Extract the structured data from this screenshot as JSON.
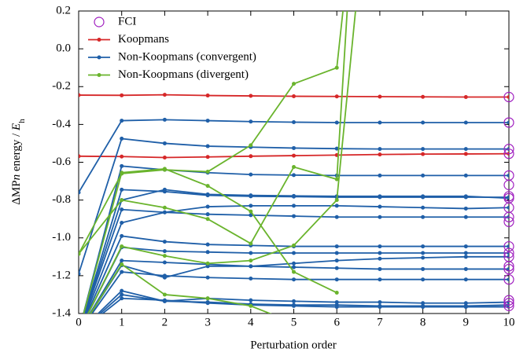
{
  "chart_data": {
    "type": "line",
    "x_label": "Perturbation order",
    "y_label": [
      "ΔMP",
      "n",
      " energy / ",
      "E",
      "h"
    ],
    "x": [
      0,
      1,
      2,
      3,
      4,
      5,
      6,
      7,
      8,
      9,
      10
    ],
    "xlim": [
      0,
      10
    ],
    "xticks": [
      0,
      1,
      2,
      3,
      4,
      5,
      6,
      7,
      8,
      9,
      10
    ],
    "ylim": [
      -1.4,
      0.2
    ],
    "yticks": [
      0.2,
      {
        "value": 0,
        "label": "0.0"
      },
      -0.2,
      -0.4,
      -0.6,
      -0.8,
      {
        "value": -1,
        "label": "-1.0"
      },
      -1.2,
      -1.4
    ],
    "legend": "top-left",
    "series": [
      {
        "name": "FCI",
        "color": "#a020c0",
        "marker": "open-circle",
        "x": [
          10,
          10,
          10,
          10,
          10,
          10,
          10,
          10,
          10,
          10,
          10,
          10,
          10,
          10,
          10,
          10,
          10,
          10,
          10,
          10
        ],
        "values": [
          -0.255,
          -0.39,
          -0.53,
          -0.555,
          -0.67,
          -0.72,
          -0.78,
          -0.79,
          -0.84,
          -0.89,
          -0.915,
          -1.045,
          -1.08,
          -1.1,
          -1.15,
          -1.165,
          -1.22,
          -1.33,
          -1.345,
          -1.36
        ]
      },
      {
        "name": "Koopmans",
        "color": "#d62728",
        "lines": [
          [
            -0.245,
            -0.246,
            -0.243,
            -0.247,
            -0.249,
            -0.251,
            -0.252,
            -0.253,
            -0.254,
            -0.255,
            -0.255
          ],
          [
            -0.568,
            -0.57,
            -0.575,
            -0.572,
            -0.568,
            -0.565,
            -0.562,
            -0.559,
            -0.557,
            -0.556,
            -0.555
          ]
        ]
      },
      {
        "name": "Non-Koopmans (convergent)",
        "color": "#1f5fa8",
        "lines": [
          [
            -0.76,
            -0.38,
            -0.375,
            -0.38,
            -0.385,
            -0.388,
            -0.39,
            -0.39,
            -0.39,
            -0.39,
            -0.39
          ],
          [
            -1.19,
            -0.475,
            -0.5,
            -0.515,
            -0.52,
            -0.525,
            -0.528,
            -0.53,
            -0.53,
            -0.53,
            -0.53
          ],
          [
            -1.5,
            -0.62,
            -0.64,
            -0.655,
            -0.665,
            -0.668,
            -0.67,
            -0.67,
            -0.67,
            -0.67,
            -0.67
          ],
          [
            -1.5,
            -0.745,
            -0.755,
            -0.775,
            -0.78,
            -0.782,
            -0.785,
            -0.785,
            -0.785,
            -0.785,
            -0.785
          ],
          [
            -1.5,
            -0.8,
            -0.745,
            -0.77,
            -0.775,
            -0.778,
            -0.78,
            -0.78,
            -0.78,
            -0.78,
            -0.79
          ],
          [
            -1.5,
            -0.92,
            -0.865,
            -0.835,
            -0.83,
            -0.83,
            -0.83,
            -0.835,
            -0.84,
            -0.845,
            -0.84
          ],
          [
            -1.5,
            -0.85,
            -0.865,
            -0.875,
            -0.88,
            -0.885,
            -0.89,
            -0.89,
            -0.89,
            -0.89,
            -0.89
          ],
          [
            -1.5,
            -0.99,
            -1.02,
            -1.035,
            -1.04,
            -1.045,
            -1.045,
            -1.045,
            -1.045,
            -1.045,
            -1.045
          ],
          [
            -1.5,
            -1.05,
            -1.07,
            -1.075,
            -1.08,
            -1.08,
            -1.08,
            -1.08,
            -1.08,
            -1.08,
            -1.08
          ],
          [
            -1.5,
            -1.12,
            -1.13,
            -1.14,
            -1.15,
            -1.155,
            -1.16,
            -1.165,
            -1.165,
            -1.165,
            -1.165
          ],
          [
            -1.5,
            -1.145,
            -1.21,
            -1.15,
            -1.15,
            -1.135,
            -1.12,
            -1.11,
            -1.105,
            -1.1,
            -1.1
          ],
          [
            -1.5,
            -1.18,
            -1.2,
            -1.21,
            -1.215,
            -1.22,
            -1.22,
            -1.22,
            -1.22,
            -1.22,
            -1.22
          ],
          [
            -1.5,
            -1.28,
            -1.335,
            -1.32,
            -1.33,
            -1.335,
            -1.34,
            -1.34,
            -1.345,
            -1.345,
            -1.34
          ],
          [
            -1.5,
            -1.3,
            -1.335,
            -1.34,
            -1.35,
            -1.355,
            -1.355,
            -1.36,
            -1.36,
            -1.36,
            -1.355
          ],
          [
            -1.5,
            -1.32,
            -1.33,
            -1.345,
            -1.355,
            -1.36,
            -1.365,
            -1.365,
            -1.365,
            -1.365,
            -1.365
          ]
        ]
      },
      {
        "name": "Non-Koopmans (divergent)",
        "color": "#6ab42d",
        "lines": [
          [
            -1.085,
            -0.66,
            -0.64,
            -0.65,
            -0.51,
            -0.185,
            -0.1,
            2.0,
            null,
            null,
            null
          ],
          [
            -1.085,
            -0.8,
            -0.84,
            -0.9,
            -1.03,
            -0.625,
            -0.69,
            3.0,
            null,
            null,
            null
          ],
          [
            -1.5,
            -0.655,
            -0.635,
            -0.725,
            -0.86,
            -1.18,
            -1.29,
            null,
            null,
            null,
            null
          ],
          [
            -1.5,
            -1.045,
            -1.095,
            -1.135,
            -1.12,
            -1.04,
            -0.8,
            1.5,
            null,
            null,
            null
          ],
          [
            -1.5,
            -1.14,
            -1.3,
            -1.32,
            -1.36,
            -1.45,
            null,
            null,
            null,
            null,
            null
          ]
        ]
      }
    ]
  }
}
